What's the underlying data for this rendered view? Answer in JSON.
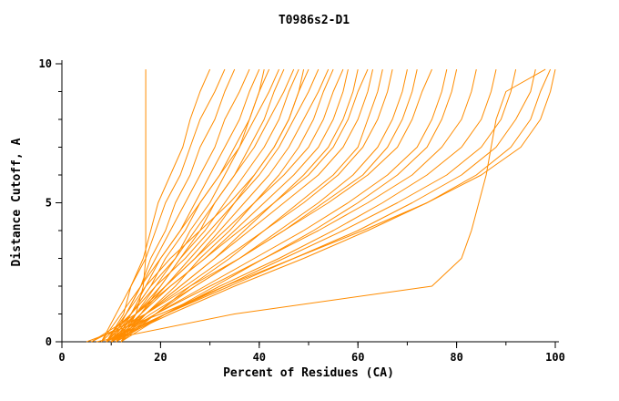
{
  "chart_data": {
    "type": "line",
    "title": "T0986s2-D1",
    "xlabel": "Percent of Residues (CA)",
    "ylabel": "Distance Cutoff, A",
    "xlim": [
      0,
      100
    ],
    "ylim": [
      0,
      10
    ],
    "x_major_ticks": [
      0,
      20,
      40,
      60,
      80,
      100
    ],
    "x_minor_step": 10,
    "y_major_ticks": [
      0,
      5,
      10
    ],
    "y_minor_step": 1,
    "grid": "off",
    "legend": "none",
    "line_color": "#ff8c00",
    "axis_color": "#000000",
    "y_grid": [
      0,
      1,
      2,
      3,
      4,
      5,
      6,
      7,
      8,
      9,
      9.8
    ],
    "series_x": [
      [
        12,
        15,
        16.5,
        17,
        17,
        17,
        17,
        17,
        17,
        17,
        17
      ],
      [
        9,
        12.5,
        14,
        16.5,
        18,
        19.5,
        22,
        24.5,
        26,
        28,
        30
      ],
      [
        8,
        11,
        14,
        17,
        19,
        21,
        24,
        26,
        28,
        31,
        33
      ],
      [
        10,
        13,
        16,
        18,
        21,
        23,
        26,
        28,
        31,
        33,
        35
      ],
      [
        9,
        13,
        16,
        19,
        22,
        25,
        28,
        31,
        33,
        36,
        38
      ],
      [
        11,
        14,
        17,
        20,
        24,
        27,
        30,
        33,
        36,
        38,
        40
      ],
      [
        10,
        14,
        18,
        21,
        25,
        28,
        32,
        35,
        38,
        40,
        42
      ],
      [
        8,
        12,
        16,
        20,
        24,
        28,
        32,
        36,
        39,
        42,
        44
      ],
      [
        12,
        16,
        20,
        24,
        28,
        31,
        35,
        38,
        41,
        43,
        45
      ],
      [
        9,
        14,
        18,
        23,
        27,
        31,
        35,
        39,
        42,
        45,
        47
      ],
      [
        10,
        15,
        20,
        24,
        29,
        33,
        37,
        41,
        44,
        46,
        48
      ],
      [
        11,
        16,
        21,
        26,
        31,
        35,
        39,
        43,
        46,
        48,
        50
      ],
      [
        8,
        14,
        19,
        25,
        30,
        35,
        40,
        44,
        47,
        50,
        52
      ],
      [
        10,
        15,
        21,
        27,
        32,
        37,
        42,
        46,
        49,
        52,
        54
      ],
      [
        12,
        17,
        23,
        28,
        34,
        39,
        44,
        48,
        51,
        53,
        55
      ],
      [
        9,
        15,
        21,
        27,
        33,
        39,
        45,
        50,
        53,
        55,
        57
      ],
      [
        10,
        16,
        22,
        29,
        35,
        41,
        47,
        52,
        55,
        57,
        58
      ],
      [
        11,
        17,
        24,
        31,
        37,
        43,
        49,
        54,
        57,
        59,
        60
      ],
      [
        6,
        15,
        22,
        29,
        36,
        43,
        50,
        55,
        58,
        60,
        62
      ],
      [
        10,
        17,
        24,
        31,
        38,
        45,
        52,
        57,
        60,
        62,
        63
      ],
      [
        12,
        19,
        26,
        34,
        41,
        48,
        55,
        60,
        62,
        64,
        65
      ],
      [
        9,
        17,
        25,
        33,
        41,
        49,
        56,
        61,
        64,
        66,
        67
      ],
      [
        11,
        19,
        27,
        36,
        44,
        52,
        59,
        64,
        67,
        69,
        70
      ],
      [
        10,
        18,
        27,
        36,
        45,
        53,
        61,
        66,
        69,
        71,
        72
      ],
      [
        6,
        17,
        26,
        36,
        45,
        54,
        62,
        68,
        71,
        73,
        75
      ],
      [
        10,
        19,
        29,
        39,
        49,
        58,
        66,
        72,
        75,
        77,
        78
      ],
      [
        12,
        21,
        31,
        41,
        51,
        60,
        68,
        74,
        77,
        79,
        80
      ],
      [
        9,
        19,
        30,
        41,
        52,
        62,
        71,
        77,
        81,
        83,
        84
      ],
      [
        11,
        21,
        32,
        44,
        55,
        65,
        74,
        81,
        85,
        87,
        88
      ],
      [
        10,
        21,
        33,
        45,
        57,
        68,
        78,
        85,
        89,
        91,
        92
      ],
      [
        9,
        21,
        34,
        47,
        60,
        71,
        81,
        88,
        92,
        95,
        96
      ],
      [
        10,
        22,
        35,
        49,
        62,
        74,
        84,
        91,
        95,
        97,
        99
      ],
      [
        5,
        20,
        33,
        47,
        61,
        74,
        85,
        93,
        97,
        99,
        100
      ],
      [
        7,
        35,
        75,
        81,
        83,
        84.5,
        86,
        87,
        88,
        90,
        98
      ],
      [
        9,
        13,
        17,
        22,
        28,
        34,
        39,
        43,
        46,
        48,
        49
      ],
      [
        11,
        15,
        19,
        23,
        26,
        30,
        33,
        36,
        38,
        40,
        41
      ]
    ]
  }
}
